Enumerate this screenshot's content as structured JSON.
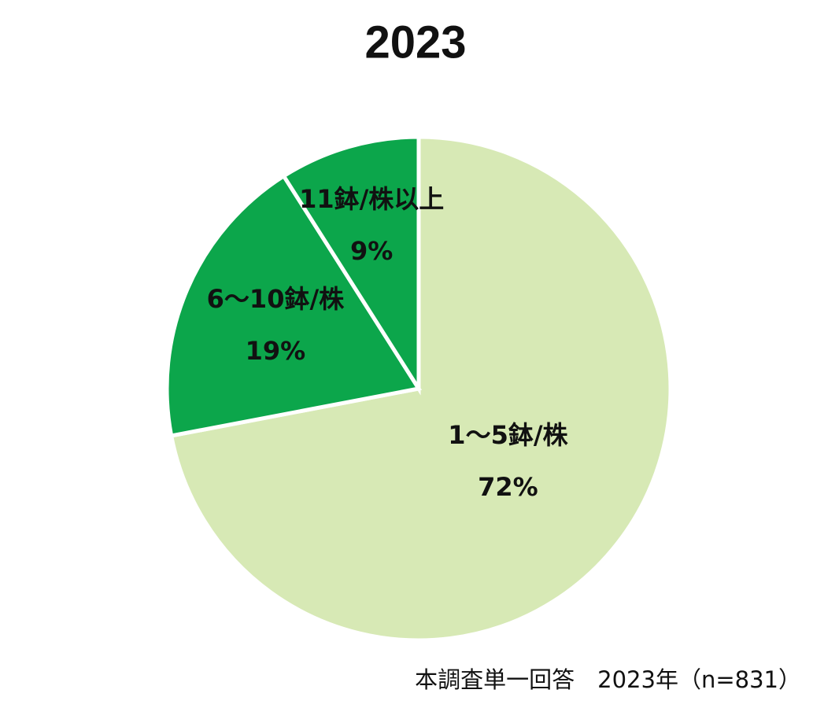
{
  "chart_data": {
    "type": "pie",
    "title": "2023",
    "categories": [
      "1～5鉢/株",
      "6～10鉢/株",
      "11鉢/株以上"
    ],
    "values": [
      72,
      19,
      9
    ],
    "value_labels": [
      "72%",
      "19%",
      "9%"
    ],
    "colors": [
      "#d7e9b5",
      "#0ca64b",
      "#0ca64b"
    ],
    "note": "本調査単一回答　2023年（n=831）"
  }
}
